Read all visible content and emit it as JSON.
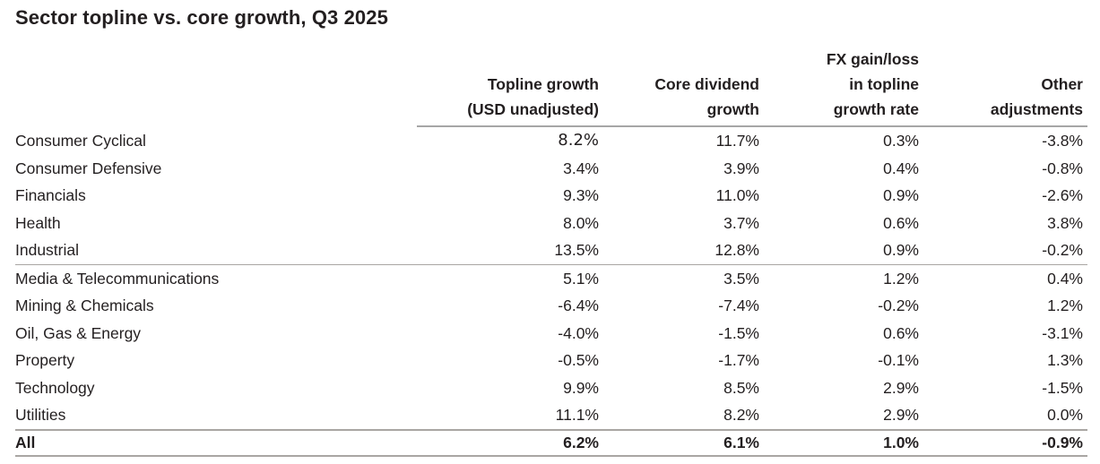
{
  "title": "Sector topline vs. core growth, Q3 2025",
  "colors": {
    "text": "#231f20",
    "rule_line": "#a9a6a3",
    "background": "#ffffff"
  },
  "table": {
    "columns": [
      {
        "lines": [
          "Topline growth",
          "(USD unadjusted)"
        ]
      },
      {
        "lines": [
          "Core dividend",
          "growth"
        ]
      },
      {
        "lines": [
          "FX gain/loss",
          "in topline",
          "growth rate"
        ]
      },
      {
        "lines": [
          "Other",
          "adjustments"
        ]
      }
    ],
    "rows": [
      {
        "label": "Consumer Cyclical",
        "values": [
          "8.2%",
          "11.7%",
          "0.3%",
          "-3.8%"
        ]
      },
      {
        "label": "Consumer Defensive",
        "values": [
          "3.4%",
          "3.9%",
          "0.4%",
          "-0.8%"
        ]
      },
      {
        "label": "Financials",
        "values": [
          "9.3%",
          "11.0%",
          "0.9%",
          "-2.6%"
        ]
      },
      {
        "label": "Health",
        "values": [
          "8.0%",
          "3.7%",
          "0.6%",
          "3.8%"
        ]
      },
      {
        "label": "Industrial",
        "values": [
          "13.5%",
          "12.8%",
          "0.9%",
          "-0.2%"
        ]
      },
      {
        "label": "Media & Telecommunications",
        "values": [
          "5.1%",
          "3.5%",
          "1.2%",
          "0.4%"
        ]
      },
      {
        "label": "Mining & Chemicals",
        "values": [
          "-6.4%",
          "-7.4%",
          "-0.2%",
          "1.2%"
        ]
      },
      {
        "label": "Oil, Gas & Energy",
        "values": [
          "-4.0%",
          "-1.5%",
          "0.6%",
          "-3.1%"
        ]
      },
      {
        "label": "Property",
        "values": [
          "-0.5%",
          "-1.7%",
          "-0.1%",
          "1.3%"
        ]
      },
      {
        "label": "Technology",
        "values": [
          "9.9%",
          "8.5%",
          "2.9%",
          "-1.5%"
        ]
      },
      {
        "label": "Utilities",
        "values": [
          "11.1%",
          "8.2%",
          "2.9%",
          "0.0%"
        ]
      }
    ],
    "total": {
      "label": "All",
      "values": [
        "6.2%",
        "6.1%",
        "1.0%",
        "-0.9%"
      ]
    }
  },
  "chart_data": {
    "type": "table",
    "title": "Sector topline vs. core growth, Q3 2025",
    "unit": "%",
    "columns": [
      "Topline growth (USD unadjusted)",
      "Core dividend growth",
      "FX gain/loss in topline growth rate",
      "Other adjustments"
    ],
    "rows": [
      {
        "sector": "Consumer Cyclical",
        "values": [
          8.2,
          11.7,
          0.3,
          -3.8
        ]
      },
      {
        "sector": "Consumer Defensive",
        "values": [
          3.4,
          3.9,
          0.4,
          -0.8
        ]
      },
      {
        "sector": "Financials",
        "values": [
          9.3,
          11.0,
          0.9,
          -2.6
        ]
      },
      {
        "sector": "Health",
        "values": [
          8.0,
          3.7,
          0.6,
          3.8
        ]
      },
      {
        "sector": "Industrial",
        "values": [
          13.5,
          12.8,
          0.9,
          -0.2
        ]
      },
      {
        "sector": "Media & Telecommunications",
        "values": [
          5.1,
          3.5,
          1.2,
          0.4
        ]
      },
      {
        "sector": "Mining & Chemicals",
        "values": [
          -6.4,
          -7.4,
          -0.2,
          1.2
        ]
      },
      {
        "sector": "Oil, Gas & Energy",
        "values": [
          -4.0,
          -1.5,
          0.6,
          -3.1
        ]
      },
      {
        "sector": "Property",
        "values": [
          -0.5,
          -1.7,
          -0.1,
          1.3
        ]
      },
      {
        "sector": "Technology",
        "values": [
          9.9,
          8.5,
          2.9,
          -1.5
        ]
      },
      {
        "sector": "Utilities",
        "values": [
          11.1,
          8.2,
          2.9,
          0.0
        ]
      },
      {
        "sector": "All",
        "values": [
          6.2,
          6.1,
          1.0,
          -0.9
        ]
      }
    ]
  }
}
